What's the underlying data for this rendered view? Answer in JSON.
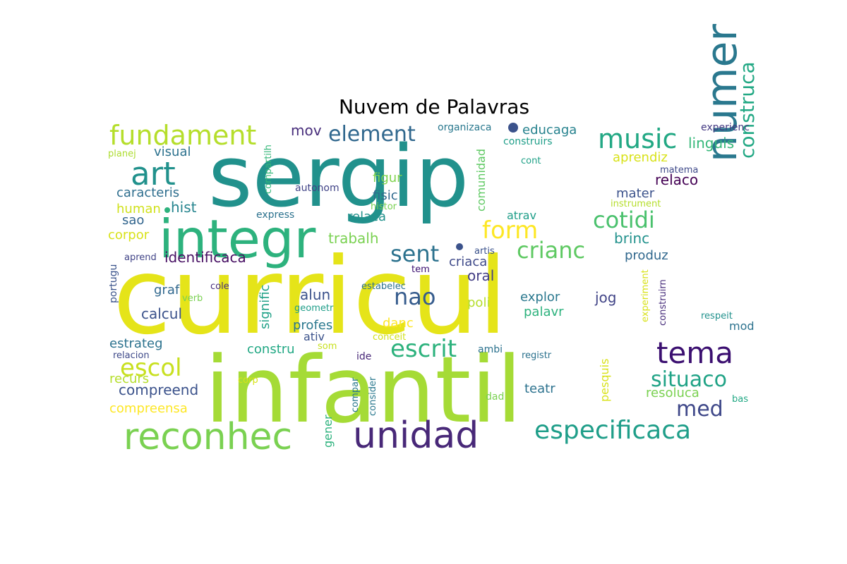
{
  "title": "Nuvem de Palavras",
  "words": [
    {
      "text": "sergip",
      "color": "#21918c"
    },
    {
      "text": "curricul",
      "color": "#e5e419"
    },
    {
      "text": "infantil",
      "color": "#a5db36"
    },
    {
      "text": "integr",
      "color": "#2db27d"
    },
    {
      "text": "numer",
      "color": "#2a788e"
    },
    {
      "text": "reconhec",
      "color": "#7ad151"
    },
    {
      "text": "unidad",
      "color": "#482878"
    },
    {
      "text": "tema",
      "color": "#3b0f70"
    },
    {
      "text": "especificaca",
      "color": "#1f9e89"
    },
    {
      "text": "art",
      "color": "#21918c"
    },
    {
      "text": "fundament",
      "color": "#b5de2b"
    },
    {
      "text": "music",
      "color": "#22a884"
    },
    {
      "text": "element",
      "color": "#31688e"
    },
    {
      "text": "escol",
      "color": "#c8e020"
    },
    {
      "text": "escrit",
      "color": "#2db27d"
    },
    {
      "text": "situaco",
      "color": "#20a386"
    },
    {
      "text": "med",
      "color": "#3f4889"
    },
    {
      "text": "crianc",
      "color": "#5ec962"
    },
    {
      "text": "cotidi",
      "color": "#4ac16d"
    },
    {
      "text": "form",
      "color": "#fde725"
    },
    {
      "text": "sent",
      "color": "#2c728e"
    },
    {
      "text": "construca",
      "color": "#22a884"
    },
    {
      "text": "nao",
      "color": "#365c8d"
    },
    {
      "text": "mov",
      "color": "#472d7b"
    },
    {
      "text": "educaga",
      "color": "#26828e"
    },
    {
      "text": "linguis",
      "color": "#35b779"
    },
    {
      "text": "experienc",
      "color": "#443983"
    },
    {
      "text": "organizaca",
      "color": "#2a788e"
    },
    {
      "text": "construirs",
      "color": "#1f9e89"
    },
    {
      "text": "aprendiz",
      "color": "#d8e219"
    },
    {
      "text": "cont",
      "color": "#1fa187"
    },
    {
      "text": "matema",
      "color": "#3e4989"
    },
    {
      "text": "relaco",
      "color": "#440154"
    },
    {
      "text": "mater",
      "color": "#3b528b"
    },
    {
      "text": "instrument",
      "color": "#b5de2b"
    },
    {
      "text": "brinc",
      "color": "#21918c"
    },
    {
      "text": "produz",
      "color": "#31688e"
    },
    {
      "text": "visual",
      "color": "#2c728e"
    },
    {
      "text": "planej",
      "color": "#addc30"
    },
    {
      "text": "caracteris",
      "color": "#2e6e8e"
    },
    {
      "text": "compartilh",
      "color": "#35b779"
    },
    {
      "text": "autonom",
      "color": "#414487"
    },
    {
      "text": "figur",
      "color": "#7fd34e"
    },
    {
      "text": "fisic",
      "color": "#306a8e"
    },
    {
      "text": "histor",
      "color": "#7ad151"
    },
    {
      "text": "comunidad",
      "color": "#5ec962"
    },
    {
      "text": "atrav",
      "color": "#1f9e89"
    },
    {
      "text": "human",
      "color": "#d0e11c"
    },
    {
      "text": "hist",
      "color": "#25848e"
    },
    {
      "text": "sao",
      "color": "#32658e"
    },
    {
      "text": "express",
      "color": "#2c728e"
    },
    {
      "text": "relaca",
      "color": "#21918c"
    },
    {
      "text": "corpor",
      "color": "#d8e219"
    },
    {
      "text": "trabalh",
      "color": "#7ad151"
    },
    {
      "text": "artis",
      "color": "#3b528b"
    },
    {
      "text": "identificaca",
      "color": "#471063"
    },
    {
      "text": "aprend",
      "color": "#414487"
    },
    {
      "text": "criaca",
      "color": "#3e4989"
    },
    {
      "text": "oral",
      "color": "#433e85"
    },
    {
      "text": "tem",
      "color": "#3b0f70"
    },
    {
      "text": "portugu",
      "color": "#3a538b"
    },
    {
      "text": "graf",
      "color": "#31688e"
    },
    {
      "text": "cole",
      "color": "#472d7b"
    },
    {
      "text": "signific",
      "color": "#1fa187"
    },
    {
      "text": "estabelec",
      "color": "#2c728e"
    },
    {
      "text": "explor",
      "color": "#2a788e"
    },
    {
      "text": "jog",
      "color": "#414487"
    },
    {
      "text": "experiment",
      "color": "#d8e219"
    },
    {
      "text": "construirn",
      "color": "#472d7b"
    },
    {
      "text": "verb",
      "color": "#7ad151"
    },
    {
      "text": "alun",
      "color": "#3b528b"
    },
    {
      "text": "geometr",
      "color": "#1f9e89"
    },
    {
      "text": "poli",
      "color": "#b5de2b"
    },
    {
      "text": "palavr",
      "color": "#2db27d"
    },
    {
      "text": "calcul",
      "color": "#3b528b"
    },
    {
      "text": "respeit",
      "color": "#21918c"
    },
    {
      "text": "mod",
      "color": "#2c728e"
    },
    {
      "text": "profes",
      "color": "#2a788e"
    },
    {
      "text": "danc",
      "color": "#fde725"
    },
    {
      "text": "ativ",
      "color": "#3b528b"
    },
    {
      "text": "conceit",
      "color": "#d0e11c"
    },
    {
      "text": "estrateg",
      "color": "#2c728e"
    },
    {
      "text": "som",
      "color": "#c8e020"
    },
    {
      "text": "relacion",
      "color": "#3e4989"
    },
    {
      "text": "constru",
      "color": "#22a884"
    },
    {
      "text": "ide",
      "color": "#482878"
    },
    {
      "text": "ambi",
      "color": "#2c728e"
    },
    {
      "text": "registr",
      "color": "#2c728e"
    },
    {
      "text": "pesquis",
      "color": "#d8e219"
    },
    {
      "text": "recurs",
      "color": "#b5de2b"
    },
    {
      "text": "corp",
      "color": "#d8e219"
    },
    {
      "text": "compar",
      "color": "#2a788e"
    },
    {
      "text": "compreend",
      "color": "#3b528b"
    },
    {
      "text": "consider",
      "color": "#2a788e"
    },
    {
      "text": "teatr",
      "color": "#2c728e"
    },
    {
      "text": "resoluca",
      "color": "#7ad151"
    },
    {
      "text": "bas",
      "color": "#22a884"
    },
    {
      "text": "gener",
      "color": "#2db27d"
    },
    {
      "text": "dad",
      "color": "#7ad151"
    },
    {
      "text": "compreensa",
      "color": "#fde725"
    }
  ]
}
